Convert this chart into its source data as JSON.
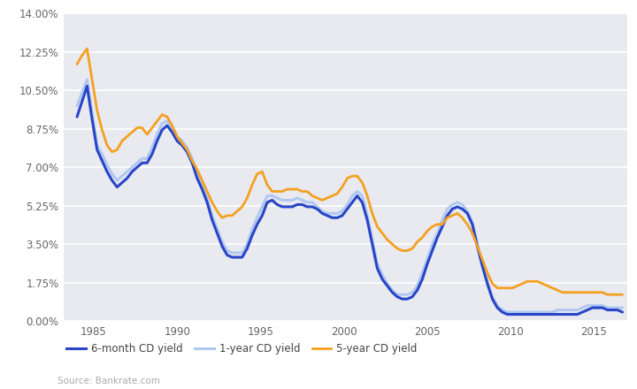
{
  "background_color": "#ffffff",
  "plot_bg_color": "#e8eaf0",
  "source_text": "Source: Bankrate.com",
  "ylim": [
    0,
    0.14
  ],
  "yticks": [
    0.0,
    0.0175,
    0.035,
    0.0525,
    0.07,
    0.0875,
    0.105,
    0.1225,
    0.14
  ],
  "ytick_labels": [
    "0.00%",
    "1.75%",
    "3.50%",
    "5.25%",
    "7.00%",
    "8.75%",
    "10.50%",
    "12.25%",
    "14.00%"
  ],
  "colors": {
    "six_month": "#2845c8",
    "one_year": "#b0c8f0",
    "five_year": "#f5a020"
  },
  "legend": [
    {
      "label": "6-month CD yield",
      "color": "#2845c8"
    },
    {
      "label": "1-year CD yield",
      "color": "#b0c8f0"
    },
    {
      "label": "5-year CD yield",
      "color": "#f5a020"
    }
  ],
  "xlim": [
    1983.2,
    2017.0
  ],
  "xticks": [
    1985,
    1990,
    1995,
    2000,
    2005,
    2010,
    2015
  ],
  "years_6mo": [
    1984.0,
    1984.3,
    1984.6,
    1984.9,
    1985.2,
    1985.5,
    1985.8,
    1986.1,
    1986.4,
    1986.7,
    1987.0,
    1987.3,
    1987.6,
    1987.9,
    1988.2,
    1988.5,
    1988.8,
    1989.1,
    1989.4,
    1989.7,
    1990.0,
    1990.3,
    1990.6,
    1990.9,
    1991.2,
    1991.5,
    1991.8,
    1992.1,
    1992.4,
    1992.7,
    1993.0,
    1993.3,
    1993.6,
    1993.9,
    1994.2,
    1994.5,
    1994.8,
    1995.1,
    1995.4,
    1995.7,
    1996.0,
    1996.3,
    1996.6,
    1996.9,
    1997.2,
    1997.5,
    1997.8,
    1998.1,
    1998.4,
    1998.7,
    1999.0,
    1999.3,
    1999.6,
    1999.9,
    2000.2,
    2000.5,
    2000.8,
    2001.1,
    2001.4,
    2001.7,
    2002.0,
    2002.3,
    2002.6,
    2002.9,
    2003.2,
    2003.5,
    2003.8,
    2004.1,
    2004.4,
    2004.7,
    2005.0,
    2005.3,
    2005.6,
    2005.9,
    2006.2,
    2006.5,
    2006.8,
    2007.1,
    2007.4,
    2007.7,
    2008.0,
    2008.3,
    2008.6,
    2008.9,
    2009.2,
    2009.5,
    2009.8,
    2010.1,
    2010.4,
    2010.7,
    2011.0,
    2011.3,
    2011.6,
    2011.9,
    2012.2,
    2012.5,
    2012.8,
    2013.1,
    2013.4,
    2013.7,
    2014.0,
    2014.3,
    2014.6,
    2014.9,
    2015.2,
    2015.5,
    2015.8,
    2016.1,
    2016.4,
    2016.7
  ],
  "values_6mo": [
    0.093,
    0.1,
    0.107,
    0.092,
    0.078,
    0.073,
    0.068,
    0.064,
    0.061,
    0.063,
    0.065,
    0.068,
    0.07,
    0.072,
    0.072,
    0.076,
    0.082,
    0.087,
    0.089,
    0.086,
    0.082,
    0.08,
    0.077,
    0.072,
    0.065,
    0.06,
    0.054,
    0.046,
    0.04,
    0.034,
    0.03,
    0.029,
    0.029,
    0.029,
    0.033,
    0.039,
    0.044,
    0.048,
    0.054,
    0.055,
    0.053,
    0.052,
    0.052,
    0.052,
    0.053,
    0.053,
    0.052,
    0.052,
    0.051,
    0.049,
    0.048,
    0.047,
    0.047,
    0.048,
    0.051,
    0.054,
    0.057,
    0.054,
    0.046,
    0.035,
    0.024,
    0.019,
    0.016,
    0.013,
    0.011,
    0.01,
    0.01,
    0.011,
    0.014,
    0.019,
    0.026,
    0.032,
    0.038,
    0.043,
    0.048,
    0.051,
    0.052,
    0.051,
    0.049,
    0.044,
    0.034,
    0.025,
    0.017,
    0.01,
    0.006,
    0.004,
    0.003,
    0.003,
    0.003,
    0.003,
    0.003,
    0.003,
    0.003,
    0.003,
    0.003,
    0.003,
    0.003,
    0.003,
    0.003,
    0.003,
    0.003,
    0.004,
    0.005,
    0.006,
    0.006,
    0.006,
    0.005,
    0.005,
    0.005,
    0.004
  ],
  "years_1yr": [
    1984.0,
    1984.3,
    1984.6,
    1984.9,
    1985.2,
    1985.5,
    1985.8,
    1986.1,
    1986.4,
    1986.7,
    1987.0,
    1987.3,
    1987.6,
    1987.9,
    1988.2,
    1988.5,
    1988.8,
    1989.1,
    1989.4,
    1989.7,
    1990.0,
    1990.3,
    1990.6,
    1990.9,
    1991.2,
    1991.5,
    1991.8,
    1992.1,
    1992.4,
    1992.7,
    1993.0,
    1993.3,
    1993.6,
    1993.9,
    1994.2,
    1994.5,
    1994.8,
    1995.1,
    1995.4,
    1995.7,
    1996.0,
    1996.3,
    1996.6,
    1996.9,
    1997.2,
    1997.5,
    1997.8,
    1998.1,
    1998.4,
    1998.7,
    1999.0,
    1999.3,
    1999.6,
    1999.9,
    2000.2,
    2000.5,
    2000.8,
    2001.1,
    2001.4,
    2001.7,
    2002.0,
    2002.3,
    2002.6,
    2002.9,
    2003.2,
    2003.5,
    2003.8,
    2004.1,
    2004.4,
    2004.7,
    2005.0,
    2005.3,
    2005.6,
    2005.9,
    2006.2,
    2006.5,
    2006.8,
    2007.1,
    2007.4,
    2007.7,
    2008.0,
    2008.3,
    2008.6,
    2008.9,
    2009.2,
    2009.5,
    2009.8,
    2010.1,
    2010.4,
    2010.7,
    2011.0,
    2011.3,
    2011.6,
    2011.9,
    2012.2,
    2012.5,
    2012.8,
    2013.1,
    2013.4,
    2013.7,
    2014.0,
    2014.3,
    2014.6,
    2014.9,
    2015.2,
    2015.5,
    2015.8,
    2016.1,
    2016.4,
    2016.7
  ],
  "values_1yr": [
    0.098,
    0.104,
    0.11,
    0.095,
    0.08,
    0.076,
    0.071,
    0.067,
    0.064,
    0.066,
    0.068,
    0.07,
    0.072,
    0.074,
    0.074,
    0.079,
    0.085,
    0.09,
    0.091,
    0.088,
    0.084,
    0.082,
    0.079,
    0.074,
    0.067,
    0.062,
    0.056,
    0.048,
    0.042,
    0.036,
    0.032,
    0.031,
    0.031,
    0.031,
    0.035,
    0.042,
    0.047,
    0.052,
    0.057,
    0.057,
    0.056,
    0.055,
    0.055,
    0.055,
    0.056,
    0.055,
    0.054,
    0.054,
    0.052,
    0.05,
    0.049,
    0.049,
    0.049,
    0.05,
    0.053,
    0.057,
    0.059,
    0.057,
    0.048,
    0.037,
    0.026,
    0.021,
    0.017,
    0.014,
    0.012,
    0.012,
    0.012,
    0.013,
    0.016,
    0.022,
    0.028,
    0.035,
    0.04,
    0.046,
    0.051,
    0.053,
    0.054,
    0.053,
    0.05,
    0.045,
    0.035,
    0.026,
    0.018,
    0.011,
    0.007,
    0.005,
    0.004,
    0.004,
    0.004,
    0.004,
    0.004,
    0.004,
    0.004,
    0.004,
    0.004,
    0.004,
    0.005,
    0.005,
    0.005,
    0.005,
    0.005,
    0.006,
    0.007,
    0.007,
    0.007,
    0.007,
    0.006,
    0.006,
    0.006,
    0.006
  ],
  "years_5yr": [
    1984.0,
    1984.3,
    1984.6,
    1984.9,
    1985.2,
    1985.5,
    1985.8,
    1986.1,
    1986.4,
    1986.7,
    1987.0,
    1987.3,
    1987.6,
    1987.9,
    1988.2,
    1988.5,
    1988.8,
    1989.1,
    1989.4,
    1989.7,
    1990.0,
    1990.3,
    1990.6,
    1990.9,
    1991.2,
    1991.5,
    1991.8,
    1992.1,
    1992.4,
    1992.7,
    1993.0,
    1993.3,
    1993.6,
    1993.9,
    1994.2,
    1994.5,
    1994.8,
    1995.1,
    1995.4,
    1995.7,
    1996.0,
    1996.3,
    1996.6,
    1996.9,
    1997.2,
    1997.5,
    1997.8,
    1998.1,
    1998.4,
    1998.7,
    1999.0,
    1999.3,
    1999.6,
    1999.9,
    2000.2,
    2000.5,
    2000.8,
    2001.1,
    2001.4,
    2001.7,
    2002.0,
    2002.3,
    2002.6,
    2002.9,
    2003.2,
    2003.5,
    2003.8,
    2004.1,
    2004.4,
    2004.7,
    2005.0,
    2005.3,
    2005.6,
    2005.9,
    2006.2,
    2006.5,
    2006.8,
    2007.1,
    2007.4,
    2007.7,
    2008.0,
    2008.3,
    2008.6,
    2008.9,
    2009.2,
    2009.5,
    2009.8,
    2010.1,
    2010.4,
    2010.7,
    2011.0,
    2011.3,
    2011.6,
    2011.9,
    2012.2,
    2012.5,
    2012.8,
    2013.1,
    2013.4,
    2013.7,
    2014.0,
    2014.3,
    2014.6,
    2014.9,
    2015.2,
    2015.5,
    2015.8,
    2016.1,
    2016.4,
    2016.7
  ],
  "values_5yr": [
    0.117,
    0.121,
    0.124,
    0.11,
    0.096,
    0.087,
    0.08,
    0.077,
    0.078,
    0.082,
    0.084,
    0.086,
    0.088,
    0.088,
    0.085,
    0.088,
    0.091,
    0.094,
    0.093,
    0.089,
    0.084,
    0.081,
    0.078,
    0.073,
    0.069,
    0.064,
    0.059,
    0.054,
    0.05,
    0.047,
    0.048,
    0.048,
    0.05,
    0.052,
    0.056,
    0.062,
    0.067,
    0.068,
    0.062,
    0.059,
    0.059,
    0.059,
    0.06,
    0.06,
    0.06,
    0.059,
    0.059,
    0.057,
    0.056,
    0.055,
    0.056,
    0.057,
    0.058,
    0.061,
    0.065,
    0.066,
    0.066,
    0.063,
    0.057,
    0.049,
    0.043,
    0.04,
    0.037,
    0.035,
    0.033,
    0.032,
    0.032,
    0.033,
    0.036,
    0.038,
    0.041,
    0.043,
    0.044,
    0.044,
    0.047,
    0.048,
    0.049,
    0.047,
    0.044,
    0.04,
    0.034,
    0.028,
    0.022,
    0.017,
    0.015,
    0.015,
    0.015,
    0.015,
    0.016,
    0.017,
    0.018,
    0.018,
    0.018,
    0.017,
    0.016,
    0.015,
    0.014,
    0.013,
    0.013,
    0.013,
    0.013,
    0.013,
    0.013,
    0.013,
    0.013,
    0.013,
    0.012,
    0.012,
    0.012,
    0.012
  ]
}
